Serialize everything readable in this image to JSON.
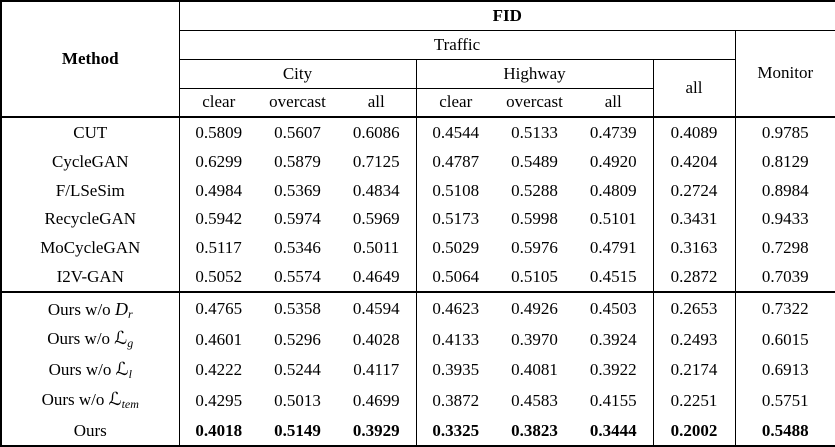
{
  "table": {
    "header": {
      "method": "Method",
      "fid": "FID",
      "traffic": "Traffic",
      "monitor": "Monitor",
      "city": "City",
      "highway": "Highway",
      "all": "all",
      "subs": [
        "clear",
        "overcast",
        "all"
      ]
    },
    "rows": [
      {
        "method": {
          "label": "CUT"
        },
        "bold": false,
        "section_start": false,
        "values": [
          "0.5809",
          "0.5607",
          "0.6086",
          "0.4544",
          "0.5133",
          "0.4739",
          "0.4089",
          "0.9785"
        ]
      },
      {
        "method": {
          "label": "CycleGAN"
        },
        "bold": false,
        "section_start": false,
        "values": [
          "0.6299",
          "0.5879",
          "0.7125",
          "0.4787",
          "0.5489",
          "0.4920",
          "0.4204",
          "0.8129"
        ]
      },
      {
        "method": {
          "label": "F/LSeSim"
        },
        "bold": false,
        "section_start": false,
        "values": [
          "0.4984",
          "0.5369",
          "0.4834",
          "0.5108",
          "0.5288",
          "0.4809",
          "0.2724",
          "0.8984"
        ]
      },
      {
        "method": {
          "label": "RecycleGAN"
        },
        "bold": false,
        "section_start": false,
        "values": [
          "0.5942",
          "0.5974",
          "0.5969",
          "0.5173",
          "0.5998",
          "0.5101",
          "0.3431",
          "0.9433"
        ]
      },
      {
        "method": {
          "label": "MoCycleGAN"
        },
        "bold": false,
        "section_start": false,
        "values": [
          "0.5117",
          "0.5346",
          "0.5011",
          "0.5029",
          "0.5976",
          "0.4791",
          "0.3163",
          "0.7298"
        ]
      },
      {
        "method": {
          "label": "I2V-GAN"
        },
        "bold": false,
        "section_start": false,
        "values": [
          "0.5052",
          "0.5574",
          "0.4649",
          "0.5064",
          "0.5105",
          "0.4515",
          "0.2872",
          "0.7039"
        ]
      },
      {
        "method": {
          "label": "Ours w/o",
          "symbol": "D",
          "sub": "r",
          "cal": false
        },
        "bold": false,
        "section_start": true,
        "values": [
          "0.4765",
          "0.5358",
          "0.4594",
          "0.4623",
          "0.4926",
          "0.4503",
          "0.2653",
          "0.7322"
        ]
      },
      {
        "method": {
          "label": "Ours w/o",
          "symbol": "ℒ",
          "sub": "g",
          "cal": true
        },
        "bold": false,
        "section_start": false,
        "values": [
          "0.4601",
          "0.5296",
          "0.4028",
          "0.4133",
          "0.3970",
          "0.3924",
          "0.2493",
          "0.6015"
        ]
      },
      {
        "method": {
          "label": "Ours w/o",
          "symbol": "ℒ",
          "sub": "l",
          "cal": true
        },
        "bold": false,
        "section_start": false,
        "values": [
          "0.4222",
          "0.5244",
          "0.4117",
          "0.3935",
          "0.4081",
          "0.3922",
          "0.2174",
          "0.6913"
        ]
      },
      {
        "method": {
          "label": "Ours w/o",
          "symbol": "ℒ",
          "sub": "tem",
          "cal": true
        },
        "bold": false,
        "section_start": false,
        "values": [
          "0.4295",
          "0.5013",
          "0.4699",
          "0.3872",
          "0.4583",
          "0.4155",
          "0.2251",
          "0.5751"
        ]
      },
      {
        "method": {
          "label": "Ours"
        },
        "bold": true,
        "section_start": false,
        "values": [
          "0.4018",
          "0.5149",
          "0.3929",
          "0.3325",
          "0.3823",
          "0.3444",
          "0.2002",
          "0.5488"
        ]
      }
    ]
  }
}
